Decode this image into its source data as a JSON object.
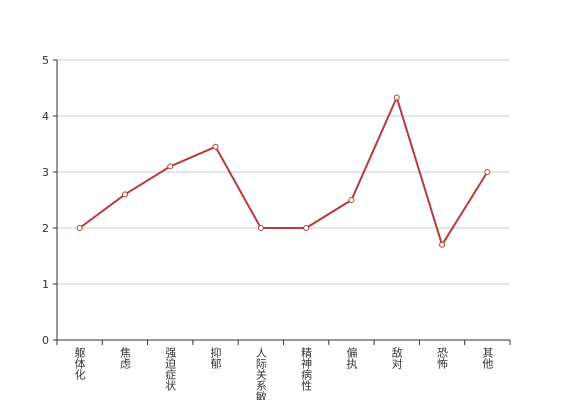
{
  "chart_data": {
    "type": "line",
    "categories": [
      "躯体化",
      "焦虑",
      "强迫症状",
      "抑郁",
      "人际关系敏感",
      "精神病性",
      "偏执",
      "敌对",
      "恐怖",
      "其他"
    ],
    "values": [
      2,
      2.6,
      3.1,
      3.45,
      2,
      2,
      2.5,
      4.33,
      1.7,
      3
    ],
    "color": "#b83b3b",
    "ylim": [
      0,
      5
    ],
    "yticks": [
      0,
      1,
      2,
      3,
      4,
      5
    ],
    "grid": true
  }
}
